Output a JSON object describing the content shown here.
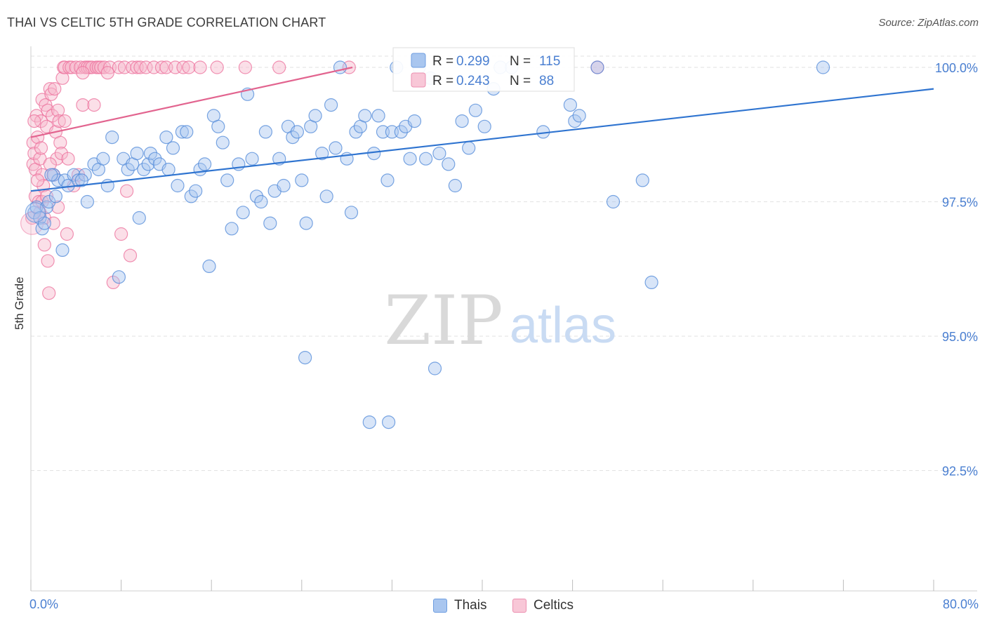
{
  "header": {
    "title": "THAI VS CELTIC 5TH GRADE CORRELATION CHART",
    "source": "Source: ZipAtlas.com"
  },
  "watermark": {
    "zip": "ZIP",
    "atlas": "atlas"
  },
  "colors": {
    "blue": "#4f88d8",
    "blue_fill": "#a9c6ef",
    "blue_line": "#2f74d0",
    "pink": "#ec6f9b",
    "pink_fill": "#f6b8cd",
    "pink_line": "#e2648f",
    "axis_text": "#4a7fd1",
    "grid": "#e2e2e2"
  },
  "legend_box": {
    "rows": [
      {
        "series": "Thais",
        "r_label": "R =",
        "r_value": "0.299",
        "n_label": "N =",
        "n_value": "115"
      },
      {
        "series": "Celtics",
        "r_label": "R =",
        "r_value": "0.243",
        "n_label": "N =",
        "n_value": "88"
      }
    ]
  },
  "legend_bottom": {
    "items": [
      "Thais",
      "Celtics"
    ]
  },
  "chart_data": {
    "type": "scatter",
    "title": "THAI VS CELTIC 5TH GRADE CORRELATION CHART",
    "xlabel": "",
    "ylabel": "5th Grade",
    "xlim": [
      0,
      80
    ],
    "ylim": [
      90.3,
      100.4
    ],
    "x_tick_labels": [
      "0.0%",
      "80.0%"
    ],
    "y_ticks": [
      {
        "value": 100.0,
        "label": "100.0%"
      },
      {
        "value": 97.5,
        "label": "97.5%"
      },
      {
        "value": 95.0,
        "label": "95.0%"
      },
      {
        "value": 92.5,
        "label": "92.5%"
      }
    ],
    "grid": "horizontal dashed",
    "legend": "top-center",
    "series": [
      {
        "name": "Thais",
        "color": "#4f88d8",
        "trend": {
          "x": [
            0,
            80
          ],
          "y": [
            97.7,
            99.6
          ]
        },
        "points": [
          [
            0.3,
            97.3
          ],
          [
            0.5,
            97.4
          ],
          [
            0.8,
            97.2
          ],
          [
            1.0,
            97.0
          ],
          [
            1.2,
            97.1
          ],
          [
            1.4,
            97.4
          ],
          [
            1.6,
            97.5
          ],
          [
            2.0,
            98.0
          ],
          [
            2.2,
            97.6
          ],
          [
            2.4,
            97.9
          ],
          [
            2.8,
            96.6
          ],
          [
            3.0,
            97.9
          ],
          [
            3.3,
            97.8
          ],
          [
            3.8,
            98.0
          ],
          [
            4.2,
            97.9
          ],
          [
            4.8,
            98.0
          ],
          [
            5.0,
            97.5
          ],
          [
            5.6,
            98.2
          ],
          [
            6.0,
            98.1
          ],
          [
            6.4,
            98.3
          ],
          [
            6.8,
            97.8
          ],
          [
            7.2,
            98.7
          ],
          [
            7.8,
            96.1
          ],
          [
            8.2,
            98.3
          ],
          [
            8.6,
            98.1
          ],
          [
            9.0,
            98.2
          ],
          [
            9.4,
            98.4
          ],
          [
            9.6,
            97.2
          ],
          [
            10.0,
            98.1
          ],
          [
            10.4,
            98.2
          ],
          [
            10.6,
            98.4
          ],
          [
            11.0,
            98.3
          ],
          [
            11.4,
            98.2
          ],
          [
            12.0,
            98.7
          ],
          [
            12.2,
            98.1
          ],
          [
            12.6,
            98.5
          ],
          [
            13.0,
            97.8
          ],
          [
            13.4,
            98.8
          ],
          [
            13.8,
            98.8
          ],
          [
            14.2,
            97.6
          ],
          [
            14.6,
            97.7
          ],
          [
            15.0,
            98.1
          ],
          [
            15.4,
            98.2
          ],
          [
            15.8,
            96.3
          ],
          [
            16.2,
            99.1
          ],
          [
            16.6,
            98.9
          ],
          [
            17.0,
            98.6
          ],
          [
            17.4,
            97.9
          ],
          [
            17.8,
            97.0
          ],
          [
            18.4,
            98.2
          ],
          [
            18.8,
            97.3
          ],
          [
            19.2,
            99.5
          ],
          [
            19.6,
            98.3
          ],
          [
            20.0,
            97.6
          ],
          [
            20.4,
            97.5
          ],
          [
            20.8,
            98.8
          ],
          [
            21.2,
            97.1
          ],
          [
            21.6,
            97.7
          ],
          [
            22.0,
            98.3
          ],
          [
            22.4,
            97.8
          ],
          [
            22.8,
            98.9
          ],
          [
            23.2,
            98.7
          ],
          [
            23.6,
            98.8
          ],
          [
            24.0,
            97.9
          ],
          [
            24.4,
            97.1
          ],
          [
            24.8,
            98.9
          ],
          [
            25.2,
            99.1
          ],
          [
            25.8,
            98.4
          ],
          [
            26.2,
            97.6
          ],
          [
            26.6,
            99.3
          ],
          [
            27.0,
            98.5
          ],
          [
            27.4,
            100.0
          ],
          [
            28.0,
            98.3
          ],
          [
            28.4,
            97.3
          ],
          [
            28.8,
            98.8
          ],
          [
            29.2,
            98.9
          ],
          [
            29.6,
            99.1
          ],
          [
            30.4,
            98.4
          ],
          [
            30.8,
            99.1
          ],
          [
            31.2,
            98.8
          ],
          [
            31.6,
            97.9
          ],
          [
            32.0,
            98.8
          ],
          [
            30.0,
            93.4
          ],
          [
            31.7,
            93.4
          ],
          [
            24.3,
            94.6
          ],
          [
            32.4,
            100.0
          ],
          [
            32.8,
            98.8
          ],
          [
            33.2,
            98.9
          ],
          [
            33.6,
            98.3
          ],
          [
            34.0,
            99.0
          ],
          [
            34.4,
            100.0
          ],
          [
            35.0,
            98.3
          ],
          [
            35.4,
            99.8
          ],
          [
            35.8,
            94.4
          ],
          [
            36.2,
            98.4
          ],
          [
            37.0,
            98.2
          ],
          [
            37.6,
            97.8
          ],
          [
            38.2,
            99.0
          ],
          [
            38.8,
            98.5
          ],
          [
            39.4,
            99.2
          ],
          [
            40.2,
            98.9
          ],
          [
            41.0,
            99.6
          ],
          [
            41.6,
            100.0
          ],
          [
            42.6,
            100.0
          ],
          [
            45.4,
            98.8
          ],
          [
            47.8,
            99.3
          ],
          [
            48.2,
            99.0
          ],
          [
            48.6,
            99.1
          ],
          [
            50.2,
            100.0
          ],
          [
            51.6,
            97.5
          ],
          [
            54.2,
            97.9
          ],
          [
            55.0,
            96.0
          ],
          [
            70.2,
            100.0
          ],
          [
            1.8,
            98.0
          ],
          [
            4.5,
            97.9
          ]
        ]
      },
      {
        "name": "Celtics",
        "color": "#ec6f9b",
        "trend": {
          "x": [
            0,
            28.5
          ],
          "y": [
            98.7,
            100.0
          ]
        },
        "points": [
          [
            0.1,
            97.2
          ],
          [
            0.2,
            98.2
          ],
          [
            0.2,
            98.6
          ],
          [
            0.3,
            98.4
          ],
          [
            0.4,
            98.1
          ],
          [
            0.4,
            97.6
          ],
          [
            0.5,
            99.1
          ],
          [
            0.6,
            98.7
          ],
          [
            0.7,
            97.5
          ],
          [
            0.8,
            98.3
          ],
          [
            0.8,
            97.3
          ],
          [
            0.9,
            99.0
          ],
          [
            1.0,
            99.4
          ],
          [
            1.0,
            98.0
          ],
          [
            1.1,
            97.8
          ],
          [
            1.2,
            97.2
          ],
          [
            1.2,
            96.7
          ],
          [
            1.3,
            99.3
          ],
          [
            1.4,
            98.9
          ],
          [
            1.5,
            99.2
          ],
          [
            1.5,
            96.4
          ],
          [
            1.6,
            95.8
          ],
          [
            1.7,
            99.6
          ],
          [
            1.8,
            99.5
          ],
          [
            1.9,
            99.1
          ],
          [
            2.0,
            97.1
          ],
          [
            2.1,
            99.6
          ],
          [
            2.2,
            98.8
          ],
          [
            2.3,
            98.3
          ],
          [
            2.4,
            99.2
          ],
          [
            2.5,
            99.0
          ],
          [
            2.6,
            98.6
          ],
          [
            2.7,
            98.4
          ],
          [
            2.8,
            99.8
          ],
          [
            2.9,
            100.0
          ],
          [
            3.0,
            100.0
          ],
          [
            3.2,
            96.9
          ],
          [
            3.3,
            98.3
          ],
          [
            3.4,
            100.0
          ],
          [
            3.6,
            100.0
          ],
          [
            3.8,
            97.8
          ],
          [
            4.0,
            100.0
          ],
          [
            4.2,
            98.0
          ],
          [
            4.4,
            100.0
          ],
          [
            4.6,
            99.3
          ],
          [
            4.8,
            100.0
          ],
          [
            5.0,
            100.0
          ],
          [
            5.2,
            100.0
          ],
          [
            5.4,
            100.0
          ],
          [
            5.6,
            99.3
          ],
          [
            5.8,
            100.0
          ],
          [
            6.0,
            100.0
          ],
          [
            6.2,
            100.0
          ],
          [
            6.5,
            100.0
          ],
          [
            7.0,
            100.0
          ],
          [
            7.3,
            96.0
          ],
          [
            7.8,
            100.0
          ],
          [
            8.0,
            96.9
          ],
          [
            8.3,
            100.0
          ],
          [
            8.5,
            97.7
          ],
          [
            8.8,
            96.5
          ],
          [
            9.0,
            100.0
          ],
          [
            9.4,
            100.0
          ],
          [
            9.7,
            100.0
          ],
          [
            10.2,
            100.0
          ],
          [
            10.9,
            100.0
          ],
          [
            11.6,
            100.0
          ],
          [
            12.0,
            100.0
          ],
          [
            12.8,
            100.0
          ],
          [
            13.5,
            100.0
          ],
          [
            14.0,
            100.0
          ],
          [
            15.0,
            100.0
          ],
          [
            16.5,
            100.0
          ],
          [
            19.0,
            100.0
          ],
          [
            22.0,
            100.0
          ],
          [
            28.2,
            100.0
          ],
          [
            50.2,
            100.0
          ],
          [
            1.0,
            97.5
          ],
          [
            0.6,
            97.9
          ],
          [
            2.0,
            98.0
          ],
          [
            1.4,
            97.6
          ],
          [
            3.0,
            99.0
          ],
          [
            2.4,
            97.4
          ],
          [
            0.9,
            98.5
          ],
          [
            1.7,
            98.2
          ],
          [
            0.3,
            99.0
          ],
          [
            4.6,
            99.9
          ],
          [
            6.8,
            99.9
          ]
        ]
      }
    ]
  }
}
